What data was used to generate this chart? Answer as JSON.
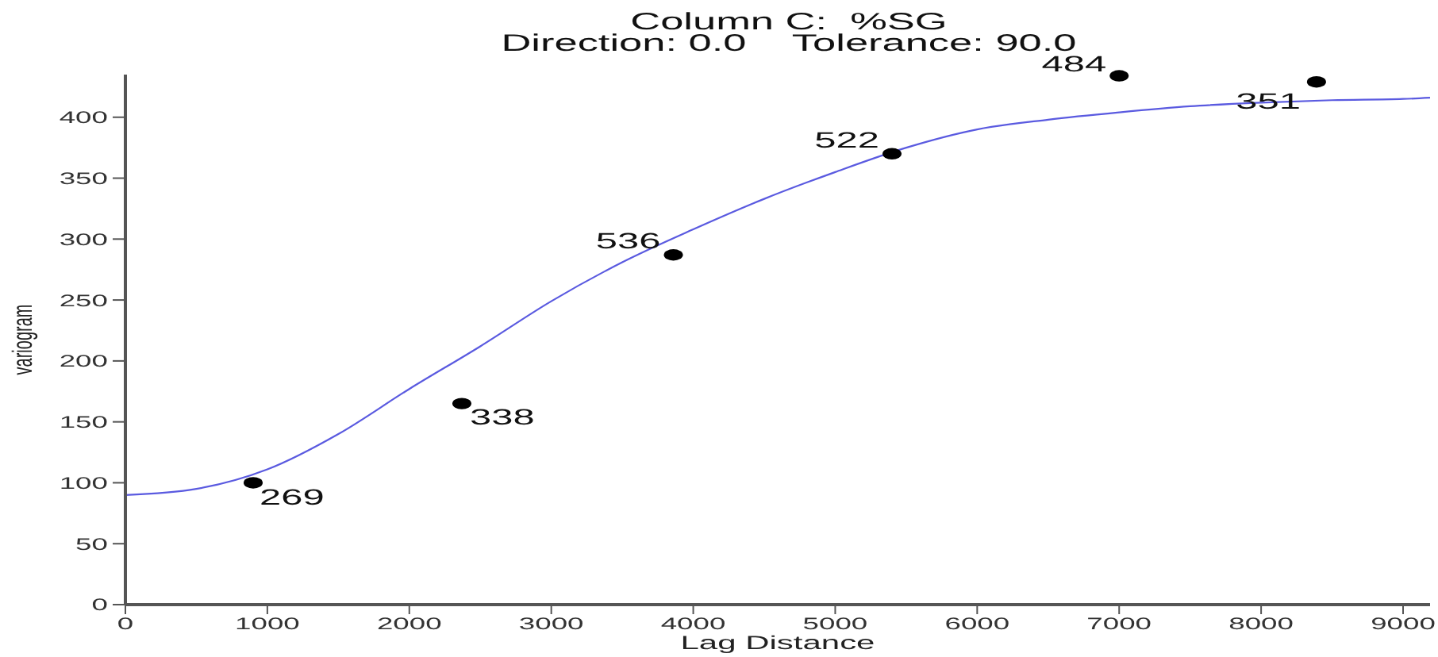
{
  "chart_data": {
    "type": "scatter",
    "title": "Column C:  %SG",
    "subtitle": "Direction: 0.0    Tolerance: 90.0",
    "xlabel": "Lag Distance",
    "ylabel": "variogram",
    "xlim": [
      0,
      9190
    ],
    "xticks": [
      0,
      1000,
      2000,
      3000,
      4000,
      5000,
      6000,
      7000,
      8000,
      9000
    ],
    "ylim": [
      0,
      435
    ],
    "yticks": [
      0,
      50,
      100,
      150,
      200,
      250,
      300,
      350,
      400
    ],
    "series": [
      {
        "type": "line",
        "color": "#5a5ae0",
        "marker": "none",
        "x": [
          0,
          500,
          1000,
          1500,
          2000,
          2500,
          3000,
          3500,
          4000,
          4500,
          5000,
          5500,
          6000,
          6500,
          7000,
          7500,
          8000,
          8500,
          9000,
          9190
        ],
        "values": [
          90,
          95,
          111,
          140,
          177,
          212,
          249,
          281,
          308,
          333,
          355,
          375,
          390,
          398,
          404,
          409,
          412,
          414,
          415,
          416
        ]
      },
      {
        "type": "scatter",
        "color": "#000000",
        "marker": "circle",
        "x": [
          900,
          2370,
          3860,
          5400,
          7000,
          8390
        ],
        "values": [
          100,
          165,
          287,
          370,
          434,
          429
        ]
      }
    ],
    "annotations": [
      {
        "text": "269",
        "x": 900,
        "y": 100
      },
      {
        "text": "338",
        "x": 2370,
        "y": 165
      },
      {
        "text": "536",
        "x": 3860,
        "y": 287
      },
      {
        "text": "522",
        "x": 5400,
        "y": 370
      },
      {
        "text": "484",
        "x": 7000,
        "y": 434
      },
      {
        "text": "351",
        "x": 8390,
        "y": 429
      }
    ]
  }
}
